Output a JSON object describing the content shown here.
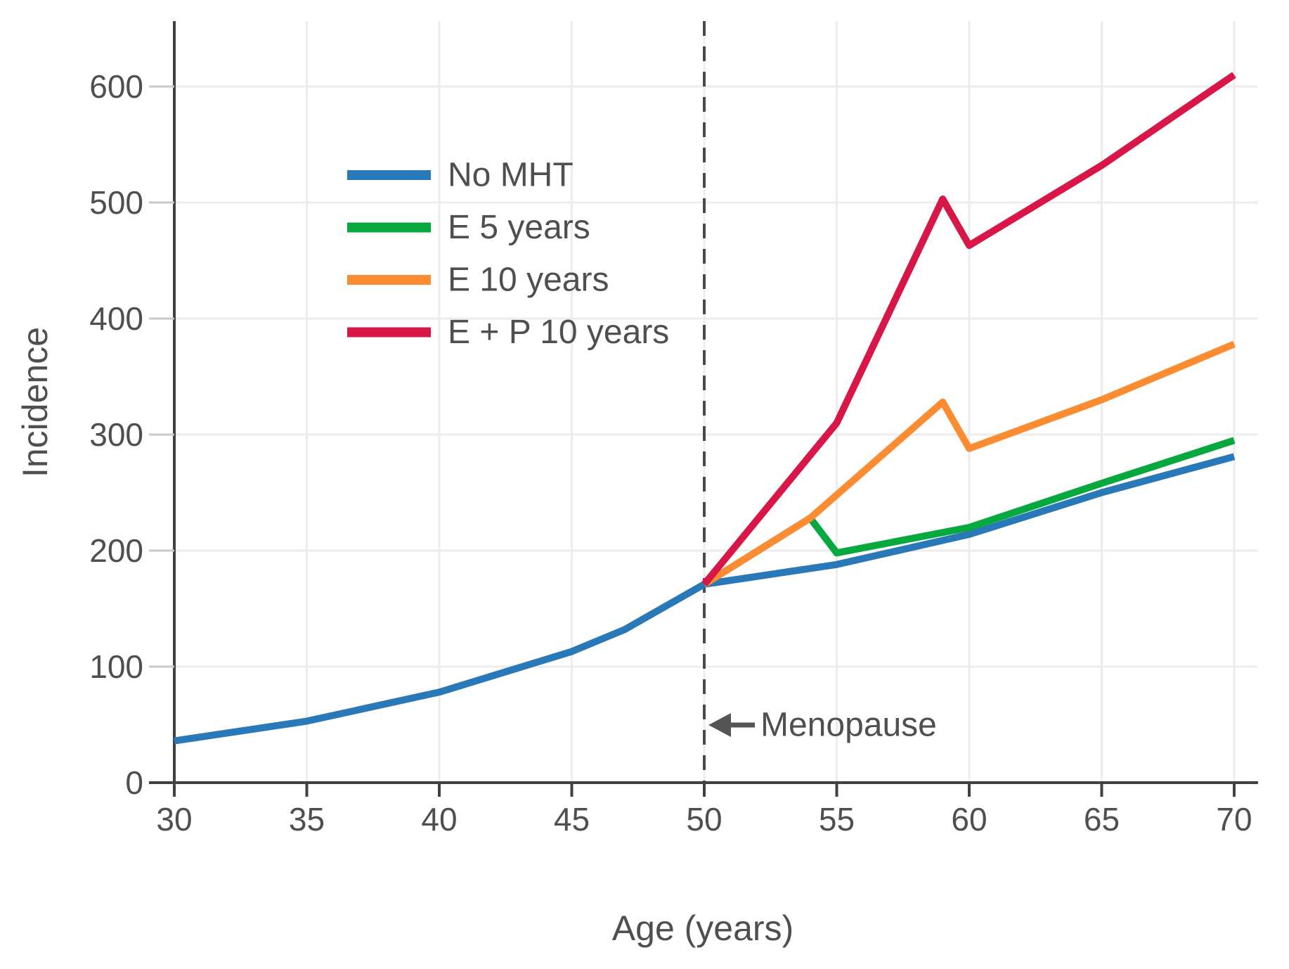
{
  "chart_data": {
    "type": "line",
    "title": "",
    "xlabel": "Age (years)",
    "ylabel": "Incidence",
    "xticks": [
      30,
      35,
      40,
      45,
      50,
      55,
      60,
      65,
      70
    ],
    "yticks": [
      0,
      100,
      200,
      300,
      400,
      500,
      600
    ],
    "xlim": [
      30,
      70
    ],
    "ylim": [
      0,
      655
    ],
    "grid": true,
    "grid_color": "#ececec",
    "spine_color": "#414141",
    "tick_color": "#c9c9c9",
    "text_color": "#4f4f4f",
    "legend_position": "upper-left-inside",
    "menopause_line": {
      "x": 50,
      "style": "dashed",
      "color": "#4a4a4a"
    },
    "annotations": [
      {
        "text": "Menopause",
        "x": 50,
        "y": 50,
        "arrow": "left",
        "color": "#555555"
      }
    ],
    "series": [
      {
        "name": "No MHT",
        "color": "#2979b8",
        "x": [
          30,
          35,
          40,
          45,
          47,
          50,
          55,
          60,
          65,
          70
        ],
        "y": [
          36,
          53,
          78,
          113,
          132,
          171,
          188,
          214,
          250,
          281
        ]
      },
      {
        "name": "E 5 years",
        "color": "#07a93f",
        "x": [
          50,
          54,
          55,
          60,
          65,
          70
        ],
        "y": [
          171,
          228,
          198,
          220,
          258,
          295
        ]
      },
      {
        "name": "E 10 years",
        "color": "#fc8c32",
        "x": [
          50,
          54,
          59,
          60,
          65,
          70
        ],
        "y": [
          171,
          228,
          328,
          288,
          330,
          378
        ]
      },
      {
        "name": "E + P 10 years",
        "color": "#d81647",
        "x": [
          50,
          55,
          59,
          60,
          65,
          70
        ],
        "y": [
          171,
          310,
          503,
          463,
          532,
          610
        ]
      }
    ]
  }
}
